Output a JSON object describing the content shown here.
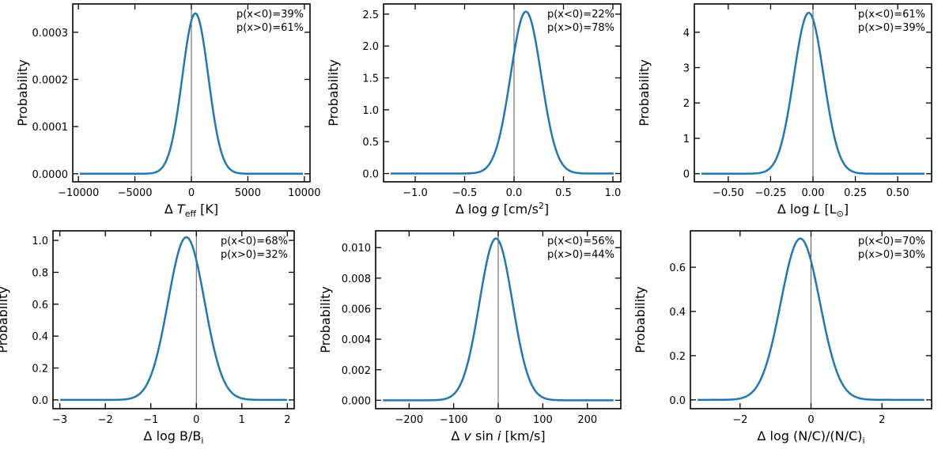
{
  "chart_data": [
    {
      "type": "line",
      "xlabel_parts": [
        "Δ ",
        "T",
        "eff",
        " [K]"
      ],
      "ylabel": "Probability",
      "xlim": [
        -10500,
        10500
      ],
      "ylim": [
        -1.71e-05,
        0.00036
      ],
      "xticks": [
        -10000,
        -5000,
        0,
        5000,
        10000
      ],
      "xtick_labels": [
        "−10000",
        "−5000",
        "0",
        "5000",
        "10000"
      ],
      "yticks": [
        0,
        0.0001,
        0.0002,
        0.0003
      ],
      "ytick_labels": [
        "0.0000",
        "0.0001",
        "0.0002",
        "0.0003"
      ],
      "curve": {
        "peak": 0.00034,
        "center": 350,
        "sigma": 1150
      },
      "annotations": [
        "p(x<0)=39%",
        "p(x>0)=61%"
      ],
      "vline": 0
    },
    {
      "type": "line",
      "xlabel_parts": [
        "Δ log ",
        "g",
        " [cm/s",
        "2",
        "]"
      ],
      "ylabel": "Probability",
      "xlim": [
        -1.32,
        1.08
      ],
      "ylim": [
        -0.13,
        2.66
      ],
      "xticks": [
        -1.0,
        -0.5,
        0.0,
        0.5,
        1.0
      ],
      "xtick_labels": [
        "−1.0",
        "−0.5",
        "0.0",
        "0.5",
        "1.0"
      ],
      "yticks": [
        0,
        0.5,
        1.0,
        1.5,
        2.0,
        2.5
      ],
      "ytick_labels": [
        "0.0",
        "0.5",
        "1.0",
        "1.5",
        "2.0",
        "2.5"
      ],
      "curve": {
        "peak": 2.54,
        "center": 0.12,
        "sigma": 0.155
      },
      "annotations": [
        "p(x<0)=22%",
        "p(x>0)=78%"
      ],
      "vline": 0
    },
    {
      "type": "line",
      "xlabel_parts": [
        "Δ  log ",
        "L",
        " [L",
        "⊙",
        "]"
      ],
      "ylabel": "Probability",
      "xlim": [
        -0.7,
        0.7
      ],
      "ylim": [
        -0.23,
        4.8
      ],
      "xticks": [
        -0.5,
        -0.25,
        0.0,
        0.25,
        0.5
      ],
      "xtick_labels": [
        "−0.50",
        "−0.25",
        "0.00",
        "0.25",
        "0.50"
      ],
      "yticks": [
        0,
        1,
        2,
        3,
        4
      ],
      "ytick_labels": [
        "0",
        "1",
        "2",
        "3",
        "4"
      ],
      "curve": {
        "peak": 4.55,
        "center": -0.025,
        "sigma": 0.088
      },
      "annotations": [
        "p(x<0)=61%",
        "p(x>0)=39%"
      ],
      "vline": 0
    },
    {
      "type": "line",
      "xlabel_parts": [
        "Δ log B/B",
        "i"
      ],
      "ylabel": "Probability",
      "xlim": [
        -3.15,
        2.15
      ],
      "ylim": [
        -0.055,
        1.06
      ],
      "xticks": [
        -3,
        -2,
        -1,
        0,
        1,
        2
      ],
      "xtick_labels": [
        "−3",
        "−2",
        "−1",
        "0",
        "1",
        "2"
      ],
      "yticks": [
        0,
        0.2,
        0.4,
        0.6,
        0.8,
        1.0
      ],
      "ytick_labels": [
        "0.0",
        "0.2",
        "0.4",
        "0.6",
        "0.8",
        "1.0"
      ],
      "curve": {
        "peak": 1.02,
        "center": -0.22,
        "sigma": 0.4
      },
      "annotations": [
        "p(x<0)=68%",
        "p(x>0)=32%"
      ],
      "vline": 0
    },
    {
      "type": "line",
      "xlabel_parts": [
        "Δ ",
        "v",
        " sin ",
        "i",
        " [km/s]"
      ],
      "ylabel": "Probability",
      "xlim": [
        -275,
        275
      ],
      "ylim": [
        -0.00055,
        0.0111
      ],
      "xticks": [
        -200,
        -100,
        0,
        100,
        200
      ],
      "xtick_labels": [
        "−200",
        "−100",
        "0",
        "100",
        "200"
      ],
      "yticks": [
        0,
        0.002,
        0.004,
        0.006,
        0.008,
        0.01
      ],
      "ytick_labels": [
        "0.000",
        "0.002",
        "0.004",
        "0.006",
        "0.008",
        "0.010"
      ],
      "curve": {
        "peak": 0.0106,
        "center": -5,
        "sigma": 37
      },
      "annotations": [
        "p(x<0)=56%",
        "p(x>0)=44%"
      ],
      "vline": 0
    },
    {
      "type": "line",
      "xlabel_parts": [
        "Δ log (N/C)/(N/C)",
        "i"
      ],
      "ylabel": "Probability",
      "xlim": [
        -3.4,
        3.4
      ],
      "ylim": [
        -0.04,
        0.765
      ],
      "xticks": [
        -2,
        0,
        2
      ],
      "xtick_labels": [
        "−2",
        "0",
        "2"
      ],
      "yticks": [
        0,
        0.2,
        0.4,
        0.6
      ],
      "ytick_labels": [
        "0.0",
        "0.2",
        "0.4",
        "0.6"
      ],
      "curve": {
        "peak": 0.73,
        "center": -0.3,
        "sigma": 0.55
      },
      "annotations": [
        "p(x<0)=70%",
        "p(x>0)=30%"
      ],
      "vline": 0
    }
  ],
  "style": {
    "line_color": "#1f77b4",
    "vline_color": "#555555",
    "axis_color": "#000000"
  }
}
